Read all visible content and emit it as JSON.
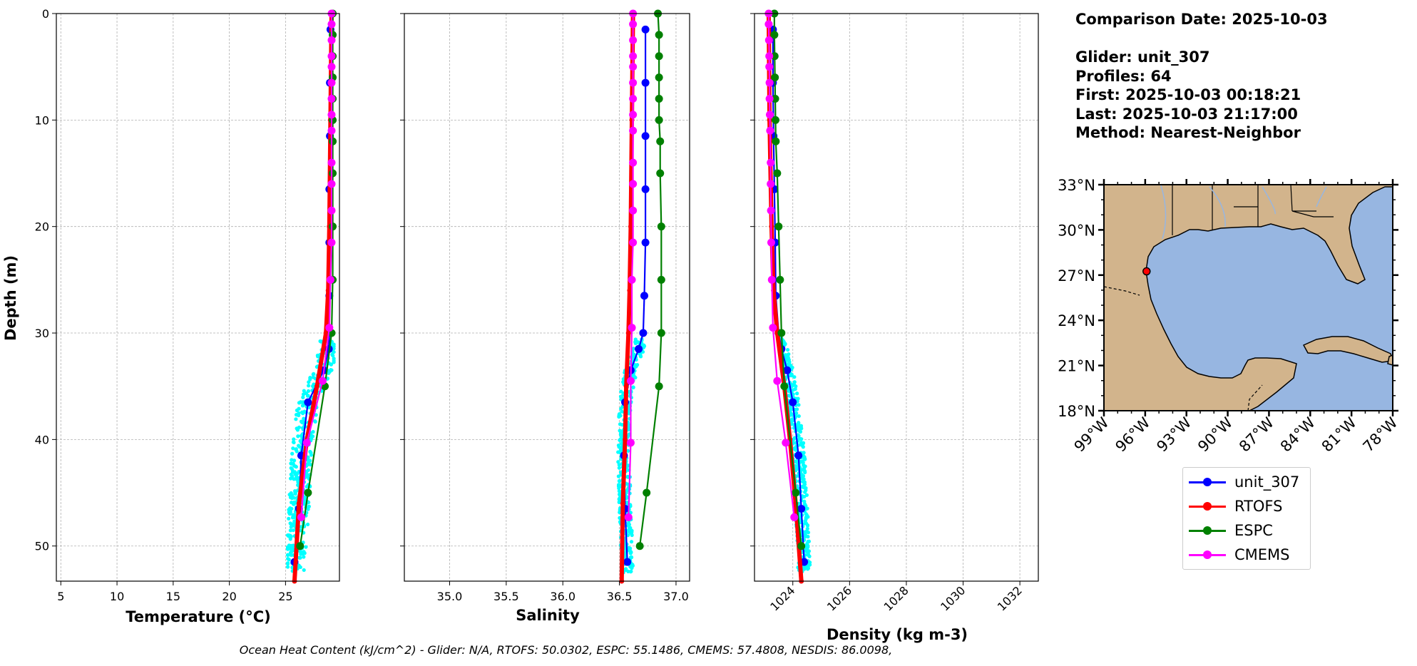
{
  "chart_data": [
    {
      "type": "line",
      "name": "temperature-panel",
      "xlabel": "Temperature (°C)",
      "ylabel": "Depth (m)",
      "xlim": [
        4.6,
        29.8
      ],
      "ylim": [
        53.3,
        0
      ],
      "xticks": [
        5,
        10,
        15,
        20,
        25
      ],
      "yticks": [
        0,
        10,
        20,
        30,
        40,
        50
      ],
      "grid": true,
      "scatter": {
        "name": "glider-observations",
        "color": "#00ffff",
        "depth_range": [
          30.5,
          52.5
        ],
        "x_range": [
          25.2,
          29.3
        ]
      },
      "series": [
        {
          "name": "unit_307",
          "color": "#0000ff",
          "x": [
            29.0,
            28.95,
            28.95,
            28.9,
            28.9,
            28.9,
            28.9,
            28.85,
            28.4,
            27.0,
            26.4,
            26.2,
            25.8
          ],
          "depth": [
            1.5,
            6.5,
            11.5,
            16.5,
            21.5,
            26.5,
            30,
            31.5,
            33.5,
            36.5,
            41.5,
            46.5,
            51.5
          ]
        },
        {
          "name": "RTOFS",
          "color": "#ff0000",
          "x": [
            29.1,
            29.0,
            28.9,
            28.8,
            28.6,
            27.8,
            26.9,
            26.2,
            25.8
          ],
          "depth": [
            0,
            10,
            20,
            26,
            30,
            35,
            40,
            46,
            53.3
          ]
        },
        {
          "name": "ESPC",
          "color": "#008000",
          "x": [
            29.2,
            29.2,
            29.2,
            29.2,
            29.2,
            29.2,
            29.2,
            29.2,
            29.2,
            29.2,
            29.1,
            28.5,
            27.0,
            26.3
          ],
          "depth": [
            0,
            2,
            4,
            6,
            8,
            10,
            12,
            15,
            20,
            25,
            30,
            35,
            45,
            50
          ]
        },
        {
          "name": "CMEMS",
          "color": "#ff00ff",
          "x": [
            29.1,
            29.1,
            29.1,
            29.1,
            29.1,
            29.1,
            29.1,
            29.1,
            29.1,
            29.1,
            29.1,
            29.1,
            29.1,
            29.0,
            28.9,
            28.3,
            26.9,
            26.4
          ],
          "depth": [
            0,
            1,
            2.5,
            4,
            5,
            6.5,
            8,
            9.5,
            11,
            14,
            16,
            18.5,
            21.5,
            25,
            29.5,
            34.5,
            40.3,
            47.3
          ]
        }
      ]
    },
    {
      "type": "line",
      "name": "salinity-panel",
      "xlabel": "Salinity",
      "xlim": [
        34.6,
        37.12
      ],
      "ylim": [
        53.3,
        0
      ],
      "xticks": [
        35.0,
        35.5,
        36.0,
        36.5,
        37.0
      ],
      "xtick_labels": [
        "35.0",
        "35.5",
        "36.0",
        "36.5",
        "37.0"
      ],
      "grid": true,
      "scatter": {
        "name": "glider-observations",
        "color": "#00ffff",
        "depth_range": [
          30.5,
          52.5
        ],
        "x_range": [
          36.48,
          36.72
        ]
      },
      "series": [
        {
          "name": "unit_307",
          "color": "#0000ff",
          "x": [
            36.73,
            36.73,
            36.73,
            36.73,
            36.73,
            36.72,
            36.71,
            36.67,
            36.6,
            36.55,
            36.54,
            36.55,
            36.57
          ],
          "depth": [
            1.5,
            6.5,
            11.5,
            16.5,
            21.5,
            26.5,
            30,
            31.5,
            33.5,
            36.5,
            41.5,
            46.5,
            51.5
          ]
        },
        {
          "name": "RTOFS",
          "color": "#ff0000",
          "x": [
            36.62,
            36.61,
            36.6,
            36.59,
            36.58,
            36.56,
            36.55,
            36.53,
            36.52
          ],
          "depth": [
            0,
            10,
            20,
            26,
            30,
            35,
            40,
            46,
            53.3
          ]
        },
        {
          "name": "ESPC",
          "color": "#008000",
          "x": [
            36.84,
            36.85,
            36.85,
            36.85,
            36.85,
            36.85,
            36.86,
            36.86,
            36.87,
            36.87,
            36.87,
            36.85,
            36.74,
            36.68
          ],
          "depth": [
            0,
            2,
            4,
            6,
            8,
            10,
            12,
            15,
            20,
            25,
            30,
            35,
            45,
            50
          ]
        },
        {
          "name": "CMEMS",
          "color": "#ff00ff",
          "x": [
            36.62,
            36.62,
            36.62,
            36.62,
            36.62,
            36.62,
            36.62,
            36.62,
            36.62,
            36.62,
            36.62,
            36.62,
            36.62,
            36.61,
            36.61,
            36.6,
            36.6,
            36.58
          ],
          "depth": [
            0,
            1,
            2.5,
            4,
            5,
            6.5,
            8,
            9.5,
            11,
            14,
            16,
            18.5,
            21.5,
            25,
            29.5,
            34.5,
            40.3,
            47.3
          ]
        }
      ]
    },
    {
      "type": "line",
      "name": "density-panel",
      "xlabel": "Density (kg m-3)",
      "xlim": [
        1022.65,
        1032.65
      ],
      "ylim": [
        53.3,
        0
      ],
      "xticks": [
        1024,
        1026,
        1028,
        1030,
        1032
      ],
      "grid": true,
      "scatter": {
        "name": "glider-observations",
        "color": "#00ffff",
        "depth_range": [
          30.5,
          52.5
        ],
        "x_range": [
          1023.6,
          1024.6
        ]
      },
      "series": [
        {
          "name": "unit_307",
          "color": "#0000ff",
          "x": [
            1023.3,
            1023.3,
            1023.32,
            1023.35,
            1023.38,
            1023.4,
            1023.5,
            1023.6,
            1023.8,
            1024.0,
            1024.2,
            1024.3,
            1024.4
          ],
          "depth": [
            1.5,
            6.5,
            11.5,
            16.5,
            21.5,
            26.5,
            30,
            31.5,
            33.5,
            36.5,
            41.5,
            46.5,
            51.5
          ]
        },
        {
          "name": "RTOFS",
          "color": "#ff0000",
          "x": [
            1023.15,
            1023.18,
            1023.25,
            1023.32,
            1023.45,
            1023.7,
            1023.9,
            1024.1,
            1024.3
          ],
          "depth": [
            0,
            10,
            20,
            26,
            30,
            35,
            40,
            46,
            53.3
          ]
        },
        {
          "name": "ESPC",
          "color": "#008000",
          "x": [
            1023.35,
            1023.35,
            1023.36,
            1023.37,
            1023.38,
            1023.39,
            1023.4,
            1023.45,
            1023.5,
            1023.55,
            1023.6,
            1023.7,
            1024.1,
            1024.3
          ],
          "depth": [
            0,
            2,
            4,
            6,
            8,
            10,
            12,
            15,
            20,
            25,
            30,
            35,
            45,
            50
          ]
        },
        {
          "name": "CMEMS",
          "color": "#ff00ff",
          "x": [
            1023.15,
            1023.15,
            1023.16,
            1023.17,
            1023.17,
            1023.18,
            1023.18,
            1023.19,
            1023.2,
            1023.22,
            1023.22,
            1023.23,
            1023.24,
            1023.26,
            1023.3,
            1023.45,
            1023.75,
            1024.05
          ],
          "depth": [
            0,
            1,
            2.5,
            4,
            5,
            6.5,
            8,
            9.5,
            11,
            14,
            16,
            18.5,
            21.5,
            25,
            29.5,
            34.5,
            40.3,
            47.3
          ]
        }
      ]
    },
    {
      "type": "map",
      "name": "gulf-map",
      "lon_range": [
        -99,
        -78
      ],
      "lat_range": [
        18,
        33
      ],
      "lon_ticks": [
        "99°W",
        "96°W",
        "93°W",
        "90°W",
        "87°W",
        "84°W",
        "81°W",
        "78°W"
      ],
      "lat_ticks": [
        "33°N",
        "30°N",
        "27°N",
        "24°N",
        "21°N",
        "18°N"
      ],
      "marker": {
        "name": "glider-location",
        "lon": -95.9,
        "lat": 27.25,
        "color": "#ff0000"
      },
      "land_color": "#d2b48c",
      "ocean_color": "#97b6e1"
    }
  ],
  "info": {
    "comparison_date": "Comparison Date: 2025-10-03",
    "glider": "Glider: unit_307",
    "profiles": "Profiles: 64",
    "first": "First: 2025-10-03 00:18:21",
    "last": "Last: 2025-10-03 21:17:00",
    "method": "Method: Nearest-Neighbor"
  },
  "legend": [
    {
      "label": "unit_307",
      "color": "#0000ff"
    },
    {
      "label": "RTOFS",
      "color": "#ff0000"
    },
    {
      "label": "ESPC",
      "color": "#008000"
    },
    {
      "label": "CMEMS",
      "color": "#ff00ff"
    }
  ],
  "footer": "Ocean Heat Content (kJ/cm^2) - Glider: N/A,  RTOFS: 50.0302,  ESPC: 55.1486,  CMEMS: 57.4808,  NESDIS: 86.0098,"
}
